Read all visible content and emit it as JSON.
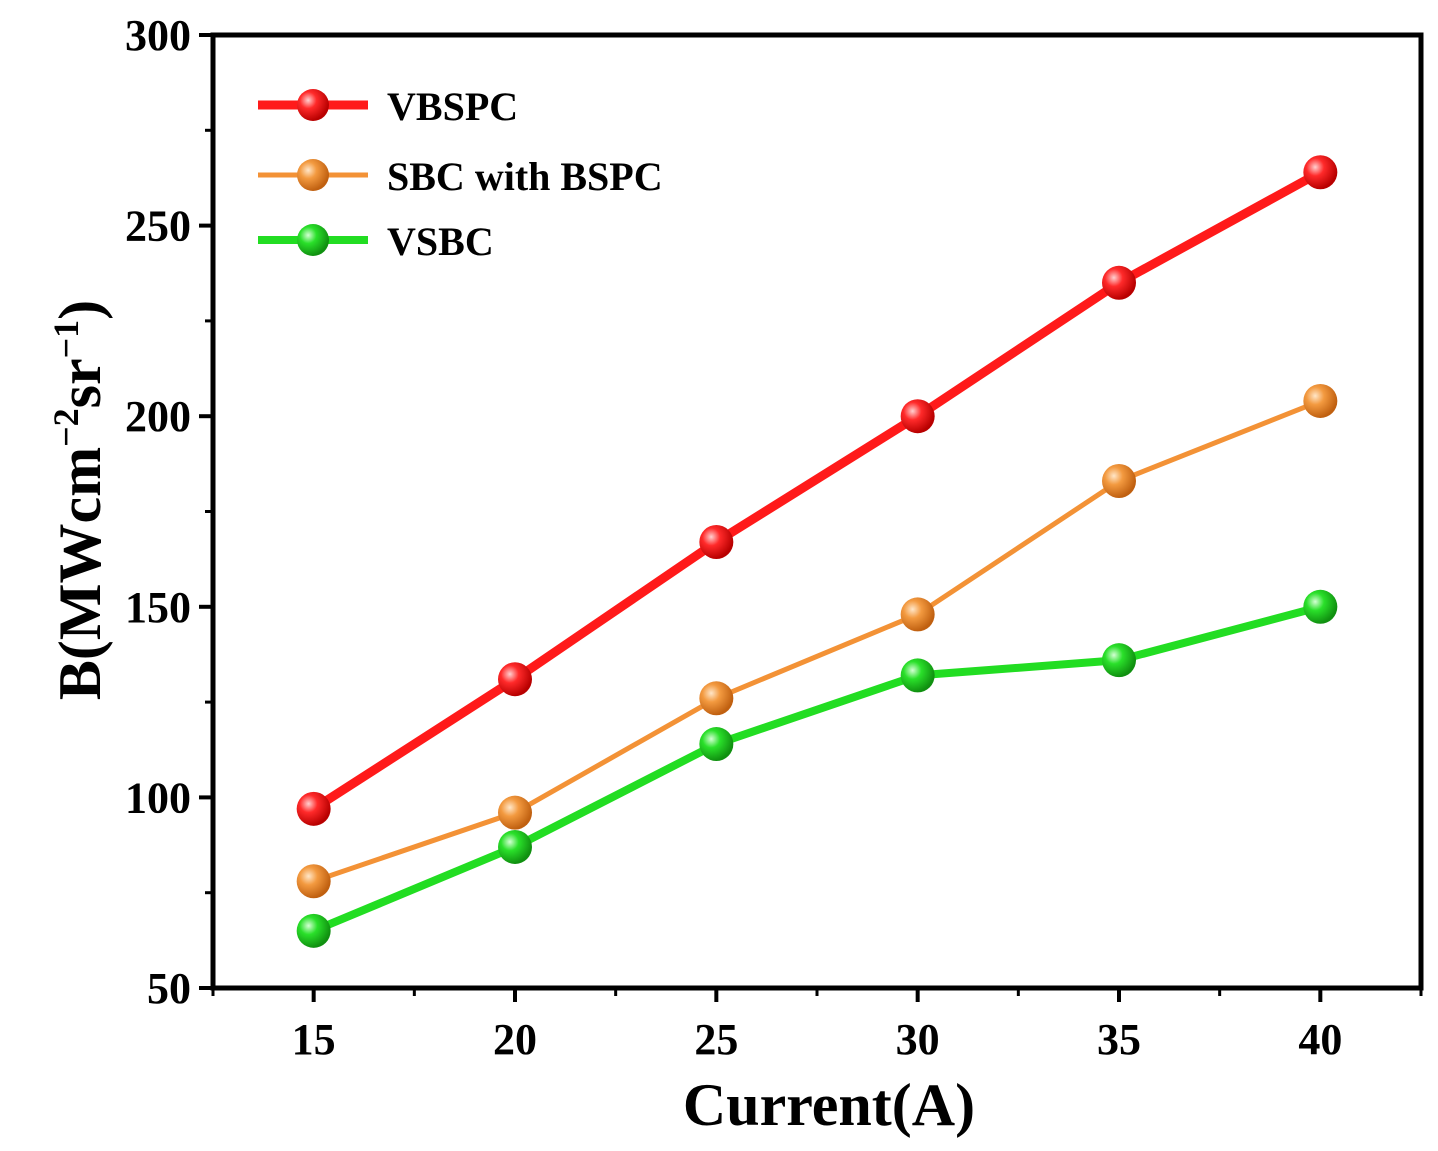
{
  "chart_data": {
    "type": "line",
    "title": "",
    "xlabel": "Current(A)",
    "ylabel": "B(MWcm",
    "ylabel_sup1": "−2",
    "ylabel_mid": "sr",
    "ylabel_sup2": "−1",
    "ylabel_end": ")",
    "x": [
      15,
      20,
      25,
      30,
      35,
      40
    ],
    "xlim": [
      12.5,
      42.5
    ],
    "ylim": [
      50,
      300
    ],
    "xticks": [
      "15",
      "20",
      "25",
      "30",
      "35",
      "40"
    ],
    "yticks": [
      "50",
      "100",
      "150",
      "200",
      "250",
      "300"
    ],
    "grid": false,
    "legend_position": "top-left",
    "series": [
      {
        "name": "VBSPC",
        "color": "#ff1a1a",
        "values": [
          97,
          131,
          167,
          200,
          235,
          264
        ]
      },
      {
        "name": "SBC with BSPC",
        "color": "#f39236",
        "values": [
          78,
          96,
          126,
          148,
          183,
          204
        ]
      },
      {
        "name": "VSBC",
        "color": "#22dd22",
        "values": [
          65,
          87,
          114,
          132,
          136,
          150
        ]
      }
    ]
  }
}
